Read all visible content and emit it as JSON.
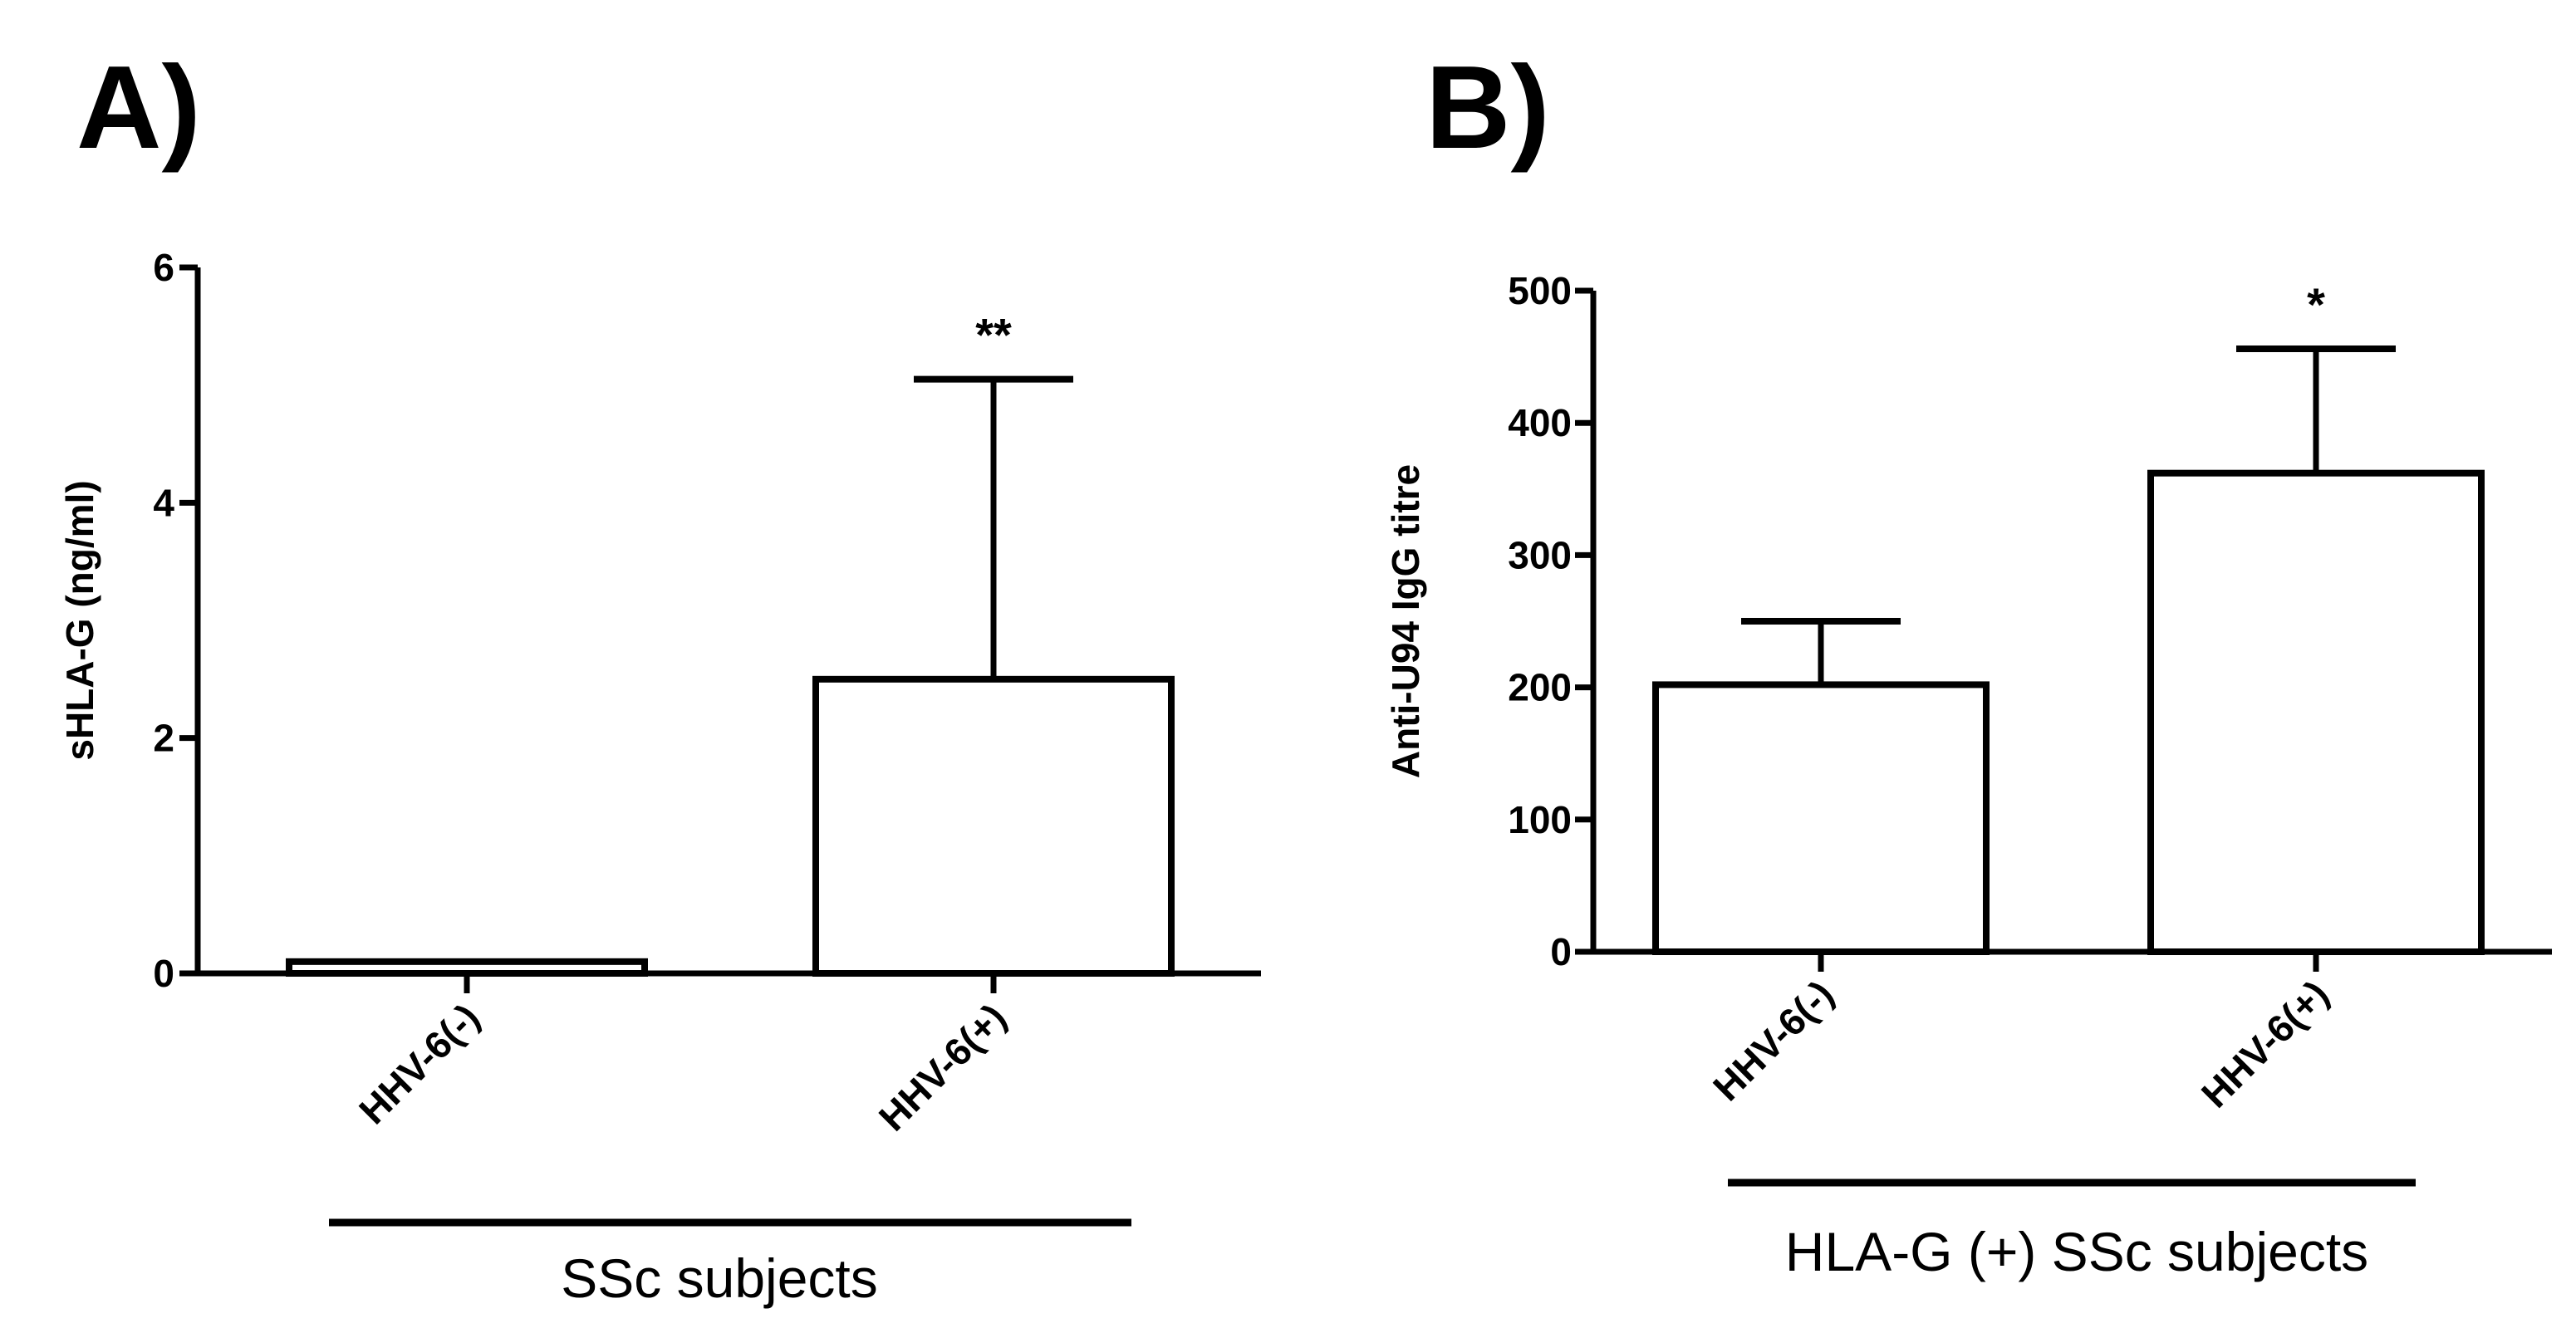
{
  "chart_data": [
    {
      "panel": "A)",
      "type": "bar",
      "categories": [
        "HHV-6(-)",
        "HHV-6(+)"
      ],
      "values": [
        0.1,
        2.5
      ],
      "error_upper": [
        0.0,
        5.05
      ],
      "significance": [
        "",
        "**"
      ],
      "ylabel": "sHLA-G (ng/ml)",
      "xlabel": "",
      "ylim": [
        0,
        6
      ],
      "yticks": [
        0,
        2,
        4,
        6
      ],
      "group_label": "SSc subjects",
      "grid": false
    },
    {
      "panel": "B)",
      "type": "bar",
      "categories": [
        "HHV-6(-)",
        "HHV-6(+)"
      ],
      "values": [
        202,
        362
      ],
      "error_upper": [
        250,
        456
      ],
      "significance": [
        "",
        "*"
      ],
      "ylabel": "Anti-U94 IgG titre",
      "xlabel": "",
      "ylim": [
        0,
        500
      ],
      "yticks": [
        0,
        100,
        200,
        300,
        400,
        500
      ],
      "group_label": "HLA-G (+) SSc subjects",
      "grid": false
    }
  ],
  "colors": {
    "bar_fill": "#ffffff",
    "stroke": "#000000"
  }
}
